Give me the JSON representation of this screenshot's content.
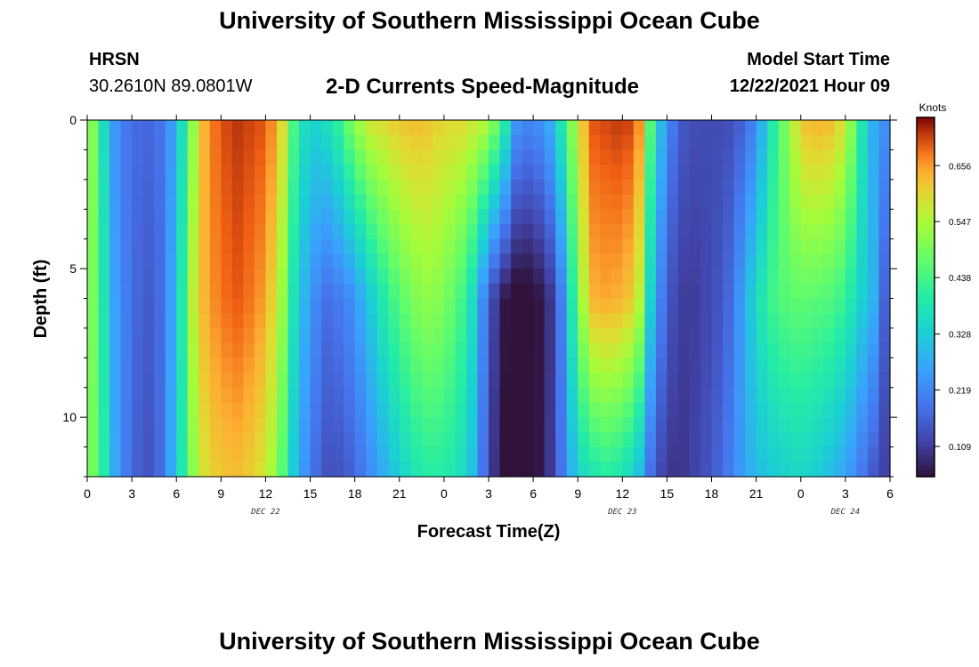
{
  "header": {
    "title": "University of Southern Mississippi Ocean Cube",
    "station": "HRSN",
    "coords": "30.2610N  89.0801W",
    "subtitle": "2-D Currents Speed-Magnitude",
    "model_start_label": "Model Start Time",
    "model_start_value": "12/22/2021 Hour 09"
  },
  "footer": {
    "title": "University of Southern Mississippi Ocean Cube"
  },
  "chart_data": {
    "type": "heatmap",
    "title": "2-D Currents Speed-Magnitude",
    "xlabel": "Forecast Time(Z)",
    "ylabel": "Depth (ft)",
    "x_tick_labels": [
      "0",
      "3",
      "6",
      "9",
      "12",
      "15",
      "18",
      "21",
      "0",
      "3",
      "6",
      "9",
      "12",
      "15",
      "18",
      "21",
      "0",
      "3",
      "6"
    ],
    "date_labels": [
      "DEC 22",
      "DEC 23",
      "DEC 24"
    ],
    "date_label_tick_index": [
      4,
      12,
      17
    ],
    "y_ticks": [
      0,
      5,
      10
    ],
    "ylim": [
      0,
      12
    ],
    "xlim_hours": [
      0,
      54
    ],
    "colorbar": {
      "title": "Knots",
      "range": [
        0.05,
        0.75
      ],
      "tick_values": [
        0.109,
        0.219,
        0.328,
        0.438,
        0.547,
        0.656
      ],
      "tick_labels": [
        "0.109",
        "0.219",
        "0.328",
        "0.438",
        "0.547",
        "0.656"
      ]
    },
    "time_hours": [
      0,
      1,
      2,
      3,
      4,
      5,
      6,
      7,
      8,
      9,
      10,
      11,
      12,
      13,
      14,
      15,
      16,
      17,
      18,
      19,
      20,
      21,
      22,
      23,
      24,
      25,
      26,
      27,
      28,
      29,
      30,
      31,
      32,
      33,
      34,
      35,
      36,
      37,
      38,
      39,
      40,
      41,
      42,
      43,
      44,
      45,
      46,
      47,
      48,
      49,
      50,
      51,
      52,
      53,
      54
    ],
    "depth_ft": [
      0,
      6,
      12
    ],
    "speed_knots": [
      [
        0.58,
        0.38,
        0.22,
        0.18,
        0.17,
        0.19,
        0.28,
        0.5,
        0.66,
        0.7,
        0.72,
        0.71,
        0.7,
        0.62,
        0.42,
        0.33,
        0.36,
        0.42,
        0.52,
        0.58,
        0.6,
        0.62,
        0.63,
        0.62,
        0.6,
        0.6,
        0.58,
        0.55,
        0.42,
        0.22,
        0.22,
        0.26,
        0.4,
        0.58,
        0.7,
        0.71,
        0.72,
        0.7,
        0.42,
        0.22,
        0.15,
        0.13,
        0.13,
        0.13,
        0.16,
        0.22,
        0.38,
        0.5,
        0.62,
        0.64,
        0.63,
        0.58,
        0.4,
        0.26,
        0.22
      ],
      [
        0.55,
        0.4,
        0.24,
        0.18,
        0.15,
        0.18,
        0.3,
        0.55,
        0.65,
        0.68,
        0.7,
        0.68,
        0.65,
        0.55,
        0.35,
        0.25,
        0.18,
        0.2,
        0.24,
        0.32,
        0.4,
        0.46,
        0.5,
        0.52,
        0.5,
        0.45,
        0.35,
        0.15,
        0.06,
        0.03,
        0.04,
        0.08,
        0.22,
        0.5,
        0.64,
        0.65,
        0.64,
        0.6,
        0.3,
        0.15,
        0.11,
        0.11,
        0.13,
        0.16,
        0.25,
        0.36,
        0.43,
        0.46,
        0.47,
        0.46,
        0.45,
        0.42,
        0.34,
        0.28,
        0.1
      ],
      [
        0.53,
        0.42,
        0.25,
        0.17,
        0.14,
        0.18,
        0.32,
        0.5,
        0.6,
        0.62,
        0.63,
        0.61,
        0.58,
        0.48,
        0.3,
        0.2,
        0.14,
        0.14,
        0.17,
        0.22,
        0.28,
        0.33,
        0.38,
        0.4,
        0.4,
        0.37,
        0.3,
        0.12,
        0.05,
        0.02,
        0.04,
        0.09,
        0.2,
        0.34,
        0.38,
        0.4,
        0.38,
        0.32,
        0.16,
        0.1,
        0.1,
        0.12,
        0.15,
        0.19,
        0.25,
        0.3,
        0.32,
        0.34,
        0.35,
        0.33,
        0.3,
        0.26,
        0.2,
        0.14,
        0.1
      ]
    ]
  }
}
